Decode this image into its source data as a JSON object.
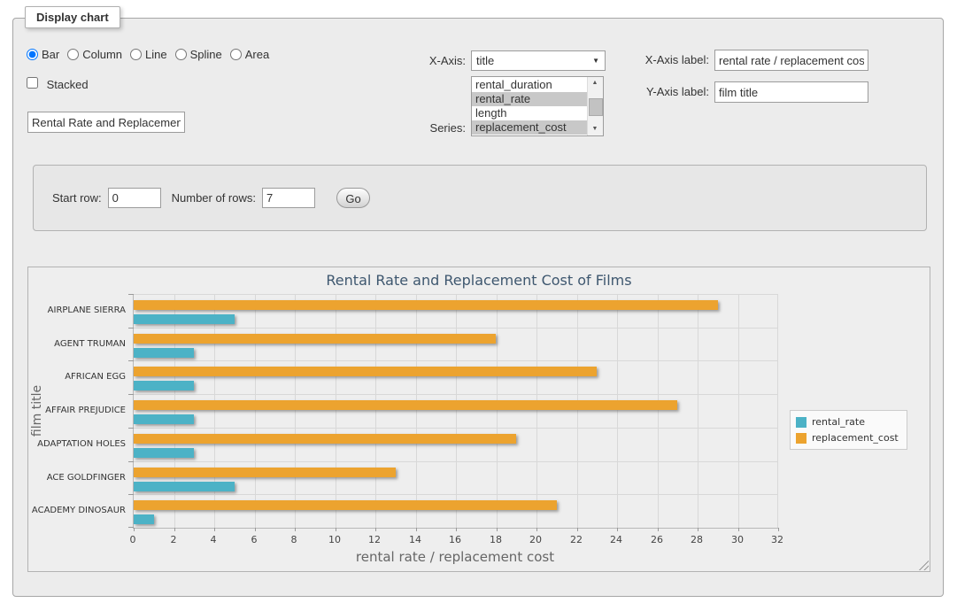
{
  "panel": {
    "legend": "Display chart"
  },
  "chart_types": {
    "options": [
      "Bar",
      "Column",
      "Line",
      "Spline",
      "Area"
    ],
    "selected": "Bar"
  },
  "stacked": {
    "label": "Stacked",
    "checked": false
  },
  "chart_title_input": {
    "value": "Rental Rate and Replacemen"
  },
  "x_axis_select": {
    "label": "X-Axis:",
    "value": "title"
  },
  "series_list": {
    "label": "Series:",
    "options": [
      {
        "label": "rental_duration",
        "selected": false
      },
      {
        "label": "rental_rate",
        "selected": true
      },
      {
        "label": "length",
        "selected": false
      },
      {
        "label": "replacement_cost",
        "selected": true
      }
    ]
  },
  "x_axis_label_input": {
    "label": "X-Axis label:",
    "value": "rental rate / replacement cost"
  },
  "y_axis_label_input": {
    "label": "Y-Axis label:",
    "value": "film title"
  },
  "rows_form": {
    "start_row_label": "Start row:",
    "start_row": "0",
    "rows_label": "Number of rows:",
    "rows": "7",
    "go": "Go"
  },
  "chart_data": {
    "type": "bar",
    "title": "Rental Rate and Replacement Cost of Films",
    "categories": [
      "AIRPLANE SIERRA",
      "AGENT TRUMAN",
      "AFRICAN EGG",
      "AFFAIR PREJUDICE",
      "ADAPTATION HOLES",
      "ACE GOLDFINGER",
      "ACADEMY DINOSAUR"
    ],
    "series": [
      {
        "name": "rental_rate",
        "color": "#4cb2c6",
        "values": [
          4.99,
          2.99,
          2.99,
          2.99,
          2.99,
          4.99,
          0.99
        ]
      },
      {
        "name": "replacement_cost",
        "color": "#eca32f",
        "values": [
          28.99,
          17.99,
          22.99,
          26.99,
          18.99,
          12.99,
          20.99
        ]
      }
    ],
    "xlabel": "rental rate / replacement cost",
    "ylabel": "film title",
    "xlim": [
      0,
      32
    ],
    "x_tick_step": 2,
    "grid": true,
    "legend_position": "right"
  }
}
